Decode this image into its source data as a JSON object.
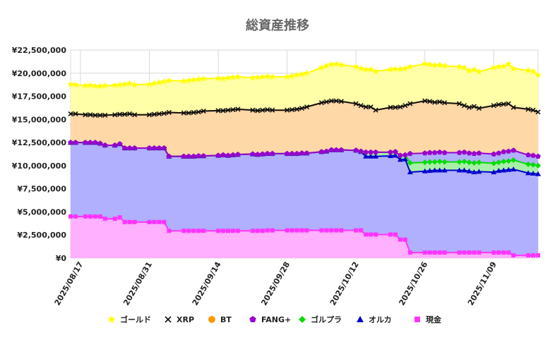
{
  "chart_data": {
    "type": "area",
    "title": "総資産推移",
    "ylim": [
      0,
      22500000
    ],
    "y_ticks": [
      {
        "value": 0,
        "label": "¥0"
      },
      {
        "value": 2500000,
        "label": "¥2,500,000"
      },
      {
        "value": 5000000,
        "label": "¥5,000,000"
      },
      {
        "value": 7500000,
        "label": "¥7,500,000"
      },
      {
        "value": 10000000,
        "label": "¥10,000,000"
      },
      {
        "value": 12500000,
        "label": "¥12,500,000"
      },
      {
        "value": 15000000,
        "label": "¥15,000,000"
      },
      {
        "value": 17500000,
        "label": "¥17,500,000"
      },
      {
        "value": 20000000,
        "label": "¥20,000,000"
      },
      {
        "value": 22500000,
        "label": "¥22,500,000"
      }
    ],
    "x_range": [
      "2025/08/15",
      "2025/11/18"
    ],
    "x_ticks": [
      "2025/08/17",
      "2025/08/31",
      "2025/09/14",
      "2025/09/28",
      "2025/10/12",
      "2025/10/26",
      "2025/11/09"
    ],
    "grid": true,
    "legend_position": "bottom",
    "stacked": true,
    "dates": [
      "2025/08/15",
      "2025/08/16",
      "2025/08/18",
      "2025/08/19",
      "2025/08/20",
      "2025/08/21",
      "2025/08/22",
      "2025/08/24",
      "2025/08/25",
      "2025/08/26",
      "2025/08/27",
      "2025/08/28",
      "2025/08/31",
      "2025/09/01",
      "2025/09/02",
      "2025/09/03",
      "2025/09/04",
      "2025/09/07",
      "2025/09/08",
      "2025/09/09",
      "2025/09/10",
      "2025/09/11",
      "2025/09/14",
      "2025/09/15",
      "2025/09/16",
      "2025/09/17",
      "2025/09/18",
      "2025/09/21",
      "2025/09/22",
      "2025/09/23",
      "2025/09/24",
      "2025/09/25",
      "2025/09/28",
      "2025/09/29",
      "2025/09/30",
      "2025/10/01",
      "2025/10/02",
      "2025/10/05",
      "2025/10/06",
      "2025/10/07",
      "2025/10/08",
      "2025/10/09",
      "2025/10/12",
      "2025/10/13",
      "2025/10/14",
      "2025/10/15",
      "2025/10/16",
      "2025/10/19",
      "2025/10/20",
      "2025/10/21",
      "2025/10/22",
      "2025/10/23",
      "2025/10/26",
      "2025/10/27",
      "2025/10/28",
      "2025/10/29",
      "2025/10/30",
      "2025/11/02",
      "2025/11/03",
      "2025/11/04",
      "2025/11/05",
      "2025/11/06",
      "2025/11/09",
      "2025/11/10",
      "2025/11/11",
      "2025/11/12",
      "2025/11/13",
      "2025/11/16",
      "2025/11/17",
      "2025/11/18"
    ],
    "series": [
      {
        "name": "現金",
        "color": "#ff33ff",
        "fill": "#ffb0ff",
        "marker": "square",
        "values": [
          4500000,
          4500000,
          4500000,
          4500000,
          4500000,
          4500000,
          4250000,
          4250000,
          4400000,
          3900000,
          3900000,
          3900000,
          3900000,
          3900000,
          3900000,
          3900000,
          2950000,
          2950000,
          2950000,
          2950000,
          2950000,
          2950000,
          2950000,
          2950000,
          2950000,
          2950000,
          2950000,
          2950000,
          2950000,
          2950000,
          3000000,
          3000000,
          3000000,
          3000000,
          3000000,
          3000000,
          3000000,
          3000000,
          3000000,
          3000000,
          3000000,
          3000000,
          3000000,
          3000000,
          2550000,
          2550000,
          2550000,
          2550000,
          2550000,
          2000000,
          2000000,
          600000,
          600000,
          600000,
          600000,
          600000,
          600000,
          600000,
          600000,
          600000,
          600000,
          600000,
          600000,
          600000,
          600000,
          600000,
          300000,
          300000,
          300000,
          300000
        ]
      },
      {
        "name": "オルカ",
        "color": "#0000cc",
        "fill": "#b0b0ff",
        "marker": "triangle",
        "values": [
          12500000,
          12500000,
          12500000,
          12500000,
          12500000,
          12400000,
          12200000,
          12200000,
          12350000,
          11900000,
          11900000,
          11900000,
          11900000,
          11900000,
          11900000,
          11900000,
          11000000,
          11000000,
          11000000,
          11000000,
          11050000,
          11050000,
          11100000,
          11150000,
          11100000,
          11150000,
          11200000,
          11250000,
          11200000,
          11250000,
          11300000,
          11300000,
          11300000,
          11300000,
          11300000,
          11350000,
          11350000,
          11500000,
          11550000,
          11700000,
          11700000,
          11700000,
          11650000,
          11500000,
          11000000,
          11000000,
          11000000,
          11050000,
          11100000,
          10650000,
          10700000,
          9300000,
          9400000,
          9450000,
          9500000,
          9500000,
          9500000,
          9500000,
          9500000,
          9400000,
          9300000,
          9350000,
          9300000,
          9450000,
          9500000,
          9550000,
          9600000,
          9200000,
          9150000,
          9100000
        ]
      },
      {
        "name": "ゴルプラ",
        "color": "#00dd00",
        "fill": "#a8f0a8",
        "marker": "diamond",
        "values": [
          12500000,
          12500000,
          12500000,
          12500000,
          12500000,
          12400000,
          12200000,
          12200000,
          12350000,
          11900000,
          11900000,
          11900000,
          11900000,
          11900000,
          11900000,
          11900000,
          11000000,
          11000000,
          11000000,
          11000000,
          11050000,
          11050000,
          11100000,
          11150000,
          11100000,
          11150000,
          11200000,
          11250000,
          11200000,
          11250000,
          11300000,
          11300000,
          11300000,
          11300000,
          11300000,
          11350000,
          11350000,
          11500000,
          11550000,
          11700000,
          11700000,
          11700000,
          11650000,
          11550000,
          11450000,
          11450000,
          11450000,
          11450000,
          11500000,
          11100000,
          11150000,
          10300000,
          10350000,
          10400000,
          10400000,
          10450000,
          10400000,
          10400000,
          10450000,
          10350000,
          10300000,
          10350000,
          10250000,
          10350000,
          10450000,
          10500000,
          10600000,
          10150000,
          10100000,
          10000000
        ]
      },
      {
        "name": "FANG+",
        "color": "#9900cc",
        "fill": "#b0b0ff",
        "marker": "pentagon",
        "values": [
          12500000,
          12500000,
          12500000,
          12500000,
          12500000,
          12400000,
          12200000,
          12200000,
          12350000,
          11900000,
          11900000,
          11900000,
          11900000,
          11900000,
          11900000,
          11900000,
          11000000,
          11000000,
          11000000,
          11000000,
          11050000,
          11050000,
          11100000,
          11150000,
          11100000,
          11150000,
          11200000,
          11250000,
          11200000,
          11250000,
          11300000,
          11300000,
          11300000,
          11300000,
          11300000,
          11350000,
          11350000,
          11500000,
          11550000,
          11700000,
          11700000,
          11700000,
          11650000,
          11550000,
          11450000,
          11450000,
          11450000,
          11450000,
          11500000,
          11100000,
          11150000,
          11300000,
          11350000,
          11400000,
          11400000,
          11450000,
          11400000,
          11400000,
          11450000,
          11350000,
          11300000,
          11350000,
          11250000,
          11350000,
          11500000,
          11550000,
          11650000,
          11150000,
          11100000,
          11000000
        ]
      },
      {
        "name": "BT",
        "color": "#ff9900",
        "fill": "#ffd8a8",
        "marker": "circle",
        "values": [
          15600000,
          15600000,
          15500000,
          15500000,
          15450000,
          15450000,
          15450000,
          15500000,
          15550000,
          15550000,
          15600000,
          15500000,
          15500000,
          15550000,
          15600000,
          15650000,
          15750000,
          15700000,
          15700000,
          15750000,
          15800000,
          15900000,
          15950000,
          15950000,
          16000000,
          16050000,
          16100000,
          16000000,
          15950000,
          16000000,
          16050000,
          16000000,
          16000000,
          16050000,
          16100000,
          16200000,
          16350000,
          16800000,
          16900000,
          17000000,
          17000000,
          16950000,
          16700000,
          16500000,
          16350000,
          16350000,
          16000000,
          16300000,
          16300000,
          16350000,
          16500000,
          16700000,
          17000000,
          16950000,
          16850000,
          16900000,
          16800000,
          16700000,
          16500000,
          16300000,
          16400000,
          16200000,
          16500000,
          16600000,
          16650000,
          16700000,
          16300000,
          16100000,
          16000000,
          15800000
        ]
      },
      {
        "name": "XRP",
        "color": "#111111",
        "fill": "#ffd8a8",
        "marker": "cross",
        "values": [
          15600000,
          15600000,
          15500000,
          15500000,
          15450000,
          15450000,
          15450000,
          15500000,
          15550000,
          15550000,
          15600000,
          15500000,
          15500000,
          15550000,
          15600000,
          15650000,
          15750000,
          15700000,
          15700000,
          15750000,
          15800000,
          15900000,
          15950000,
          15950000,
          16000000,
          16050000,
          16100000,
          16000000,
          15950000,
          16000000,
          16050000,
          16000000,
          16000000,
          16050000,
          16100000,
          16200000,
          16350000,
          16800000,
          16900000,
          17000000,
          17000000,
          16950000,
          16700000,
          16500000,
          16350000,
          16350000,
          16000000,
          16300000,
          16300000,
          16350000,
          16500000,
          16700000,
          17000000,
          16950000,
          16850000,
          16900000,
          16800000,
          16700000,
          16500000,
          16300000,
          16400000,
          16200000,
          16500000,
          16600000,
          16650000,
          16700000,
          16300000,
          16100000,
          16000000,
          15800000
        ]
      },
      {
        "name": "ゴールド",
        "color": "#ffff00",
        "fill": "#ffffa8",
        "marker": "star",
        "values": [
          18800000,
          18750000,
          18650000,
          18700000,
          18600000,
          18600000,
          18650000,
          18700000,
          18750000,
          18800000,
          18900000,
          18750000,
          18800000,
          18900000,
          19000000,
          19100000,
          19200000,
          19150000,
          19200000,
          19300000,
          19350000,
          19400000,
          19450000,
          19400000,
          19500000,
          19550000,
          19600000,
          19500000,
          19550000,
          19600000,
          19650000,
          19600000,
          19600000,
          19700000,
          19800000,
          19900000,
          20000000,
          20600000,
          20800000,
          20950000,
          21000000,
          20900000,
          20700000,
          20500000,
          20400000,
          20400000,
          20200000,
          20400000,
          20450000,
          20450000,
          20500000,
          20700000,
          21000000,
          20950000,
          20850000,
          20900000,
          20800000,
          20700000,
          20600000,
          20250000,
          20400000,
          20150000,
          20600000,
          20700000,
          20750000,
          21000000,
          20500000,
          20300000,
          20200000,
          19800000
        ]
      }
    ]
  }
}
